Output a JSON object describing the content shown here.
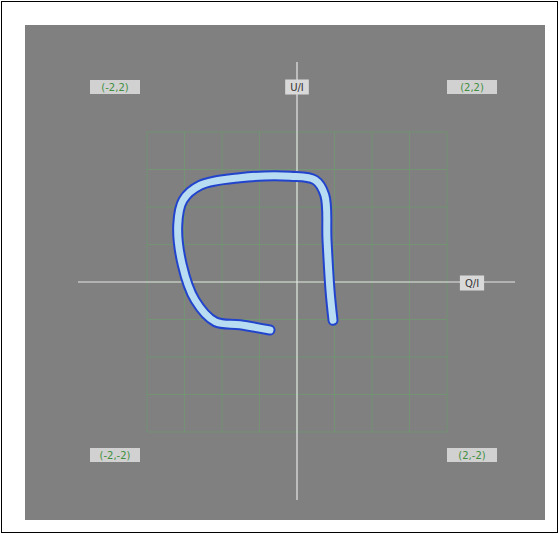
{
  "chart_data": {
    "type": "line",
    "x_label": "Q/I",
    "y_label": "U/I",
    "annotations": [
      "(-2,2)",
      "(2,2)",
      "(-2,-2)",
      "(2,-2)"
    ],
    "x": [
      -0.36,
      -0.76,
      -1.09,
      -1.36,
      -1.53,
      -1.59,
      -1.52,
      -1.29,
      -0.76,
      -0.09,
      0.24,
      0.37,
      0.4,
      0.44,
      0.48
    ],
    "series": [
      {
        "color": "#b8dcf2",
        "line_style": "solid",
        "values": [
          -0.64,
          -0.57,
          -0.53,
          -0.24,
          0.23,
          0.76,
          1.09,
          1.29,
          1.39,
          1.41,
          1.36,
          1.16,
          0.56,
          -0.11,
          -0.51
        ]
      }
    ],
    "xlim": [
      -2,
      2
    ],
    "ylim": [
      -2,
      2
    ],
    "xticks": [
      -2,
      -1.5,
      -1,
      -0.5,
      0,
      0.5,
      1,
      1.5,
      2
    ],
    "yticks": [
      -2,
      -1.5,
      -1,
      -0.5,
      0,
      0.5,
      1,
      1.5,
      2
    ],
    "grid": true,
    "tick_labels": false
  }
}
